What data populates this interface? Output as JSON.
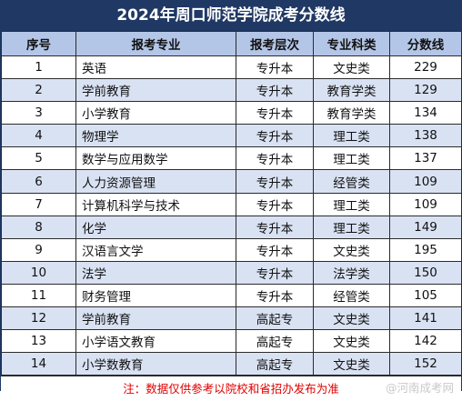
{
  "title": "2024年周口师范学院成考分数线",
  "headers": [
    "序号",
    "报考专业",
    "报考层次",
    "专业科类",
    "分数线"
  ],
  "rows": [
    {
      "idx": "1",
      "major": "英语",
      "level": "专升本",
      "category": "文史类",
      "score": "229"
    },
    {
      "idx": "2",
      "major": "学前教育",
      "level": "专升本",
      "category": "教育学类",
      "score": "129"
    },
    {
      "idx": "3",
      "major": "小学教育",
      "level": "专升本",
      "category": "教育学类",
      "score": "134"
    },
    {
      "idx": "4",
      "major": "物理学",
      "level": "专升本",
      "category": "理工类",
      "score": "138"
    },
    {
      "idx": "5",
      "major": "数学与应用数学",
      "level": "专升本",
      "category": "理工类",
      "score": "137"
    },
    {
      "idx": "6",
      "major": "人力资源管理",
      "level": "专升本",
      "category": "经管类",
      "score": "109"
    },
    {
      "idx": "7",
      "major": "计算机科学与技术",
      "level": "专升本",
      "category": "理工类",
      "score": "109"
    },
    {
      "idx": "8",
      "major": "化学",
      "level": "专升本",
      "category": "理工类",
      "score": "149"
    },
    {
      "idx": "9",
      "major": "汉语言文学",
      "level": "专升本",
      "category": "文史类",
      "score": "195"
    },
    {
      "idx": "10",
      "major": "法学",
      "level": "专升本",
      "category": "法学类",
      "score": "150"
    },
    {
      "idx": "11",
      "major": "财务管理",
      "level": "专升本",
      "category": "经管类",
      "score": "105"
    },
    {
      "idx": "12",
      "major": "学前教育",
      "level": "高起专",
      "category": "文史类",
      "score": "141"
    },
    {
      "idx": "13",
      "major": "小学语文教育",
      "level": "高起专",
      "category": "文史类",
      "score": "142"
    },
    {
      "idx": "14",
      "major": "小学数教育",
      "level": "高起专",
      "category": "文史类",
      "score": "152"
    }
  ],
  "note": "注：数据仅供参考以院校和省招办发布为准",
  "watermark": "@河南成考网",
  "colors": {
    "title_bg": "#203864",
    "header_bg": "#b4c6e7",
    "alt_row_bg": "#d9e2f3",
    "note_text": "#e00000"
  }
}
